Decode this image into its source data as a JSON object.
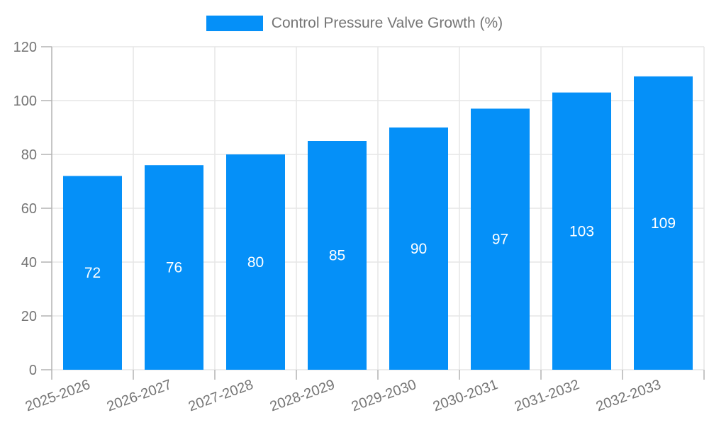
{
  "chart_data": {
    "type": "bar",
    "title": "Control Pressure Valve Growth (%)",
    "legend_position": "top",
    "categories": [
      "2025-2026",
      "2026-2027",
      "2027-2028",
      "2028-2029",
      "2029-2030",
      "2030-2031",
      "2031-2032",
      "2032-2033"
    ],
    "values": [
      72,
      76,
      80,
      85,
      90,
      97,
      103,
      109
    ],
    "xlabel": "",
    "ylabel": "",
    "ylim": [
      0,
      120
    ],
    "yticks": [
      0,
      20,
      40,
      60,
      80,
      100,
      120
    ],
    "grid": true,
    "value_labels": "inside-center",
    "x_label_rotation_deg": -20,
    "colors": {
      "bar": "#0590f8",
      "value_label": "#ffffff",
      "axis_label": "#757575",
      "grid_line": "#e6e6e6",
      "axis_line": "#b3b3b3"
    }
  }
}
